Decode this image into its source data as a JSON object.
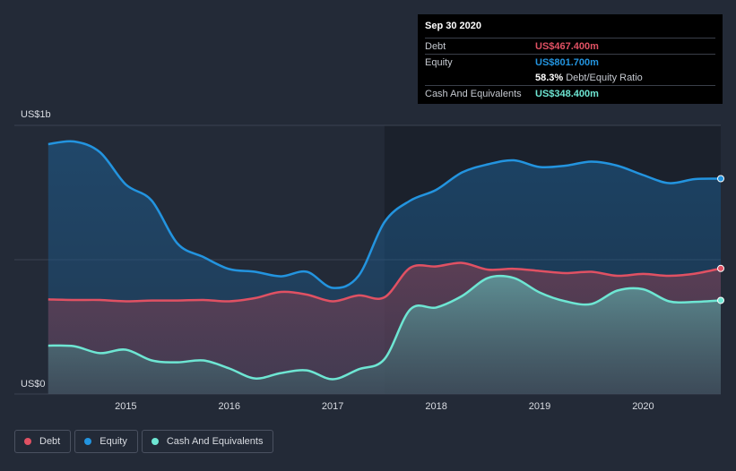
{
  "tooltip": {
    "date": "Sep 30 2020",
    "debt_label": "Debt",
    "debt_value": "US$467.400m",
    "equity_label": "Equity",
    "equity_value": "US$801.700m",
    "ratio_value": "58.3%",
    "ratio_label": "Debt/Equity Ratio",
    "cash_label": "Cash And Equivalents",
    "cash_value": "US$348.400m"
  },
  "legend": {
    "debt": "Debt",
    "equity": "Equity",
    "cash": "Cash And Equivalents"
  },
  "colors": {
    "debt": "#e05163",
    "equity": "#2394df",
    "cash": "#6ee6d3",
    "background": "#232a37",
    "plot_band": "#1b212c"
  },
  "chart_data": {
    "type": "area",
    "title": "",
    "xlabel": "",
    "ylabel": "",
    "ylim": [
      0,
      1000
    ],
    "xlim": [
      2014.2,
      2020.75
    ],
    "y_tick_labels": [
      {
        "value": 1000,
        "label": "US$1b"
      },
      {
        "value": 0,
        "label": "US$0"
      }
    ],
    "x_ticks": [
      2015,
      2016,
      2017,
      2018,
      2019,
      2020
    ],
    "x_tick_labels": [
      "2015",
      "2016",
      "2017",
      "2018",
      "2019",
      "2020"
    ],
    "units": "US$ millions",
    "series": [
      {
        "name": "Equity",
        "key": "equity",
        "points": [
          [
            2014.25,
            930
          ],
          [
            2014.5,
            940
          ],
          [
            2014.75,
            900
          ],
          [
            2015.0,
            780
          ],
          [
            2015.25,
            720
          ],
          [
            2015.5,
            560
          ],
          [
            2015.75,
            510
          ],
          [
            2016.0,
            465
          ],
          [
            2016.25,
            455
          ],
          [
            2016.5,
            438
          ],
          [
            2016.75,
            455
          ],
          [
            2017.0,
            395
          ],
          [
            2017.25,
            440
          ],
          [
            2017.5,
            640
          ],
          [
            2017.75,
            720
          ],
          [
            2018.0,
            760
          ],
          [
            2018.25,
            825
          ],
          [
            2018.5,
            855
          ],
          [
            2018.75,
            870
          ],
          [
            2019.0,
            845
          ],
          [
            2019.25,
            850
          ],
          [
            2019.5,
            865
          ],
          [
            2019.75,
            850
          ],
          [
            2020.0,
            815
          ],
          [
            2020.25,
            785
          ],
          [
            2020.5,
            800
          ],
          [
            2020.75,
            801.7
          ]
        ]
      },
      {
        "name": "Debt",
        "key": "debt",
        "points": [
          [
            2014.25,
            352
          ],
          [
            2014.5,
            350
          ],
          [
            2014.75,
            350
          ],
          [
            2015.0,
            345
          ],
          [
            2015.25,
            348
          ],
          [
            2015.5,
            348
          ],
          [
            2015.75,
            350
          ],
          [
            2016.0,
            345
          ],
          [
            2016.25,
            357
          ],
          [
            2016.5,
            380
          ],
          [
            2016.75,
            370
          ],
          [
            2017.0,
            345
          ],
          [
            2017.25,
            367
          ],
          [
            2017.5,
            360
          ],
          [
            2017.75,
            470
          ],
          [
            2018.0,
            475
          ],
          [
            2018.25,
            488
          ],
          [
            2018.5,
            463
          ],
          [
            2018.75,
            466
          ],
          [
            2019.0,
            458
          ],
          [
            2019.25,
            450
          ],
          [
            2019.5,
            455
          ],
          [
            2019.75,
            440
          ],
          [
            2020.0,
            447
          ],
          [
            2020.25,
            440
          ],
          [
            2020.5,
            448
          ],
          [
            2020.75,
            467.4
          ]
        ]
      },
      {
        "name": "Cash And Equivalents",
        "key": "cash",
        "points": [
          [
            2014.25,
            180
          ],
          [
            2014.5,
            178
          ],
          [
            2014.75,
            152
          ],
          [
            2015.0,
            165
          ],
          [
            2015.25,
            125
          ],
          [
            2015.5,
            118
          ],
          [
            2015.75,
            125
          ],
          [
            2016.0,
            95
          ],
          [
            2016.25,
            58
          ],
          [
            2016.5,
            78
          ],
          [
            2016.75,
            88
          ],
          [
            2017.0,
            55
          ],
          [
            2017.25,
            92
          ],
          [
            2017.5,
            130
          ],
          [
            2017.75,
            315
          ],
          [
            2018.0,
            322
          ],
          [
            2018.25,
            365
          ],
          [
            2018.5,
            432
          ],
          [
            2018.75,
            432
          ],
          [
            2019.0,
            378
          ],
          [
            2019.25,
            345
          ],
          [
            2019.5,
            335
          ],
          [
            2019.75,
            385
          ],
          [
            2020.0,
            390
          ],
          [
            2020.25,
            345
          ],
          [
            2020.5,
            343
          ],
          [
            2020.75,
            348.4
          ]
        ]
      }
    ]
  }
}
